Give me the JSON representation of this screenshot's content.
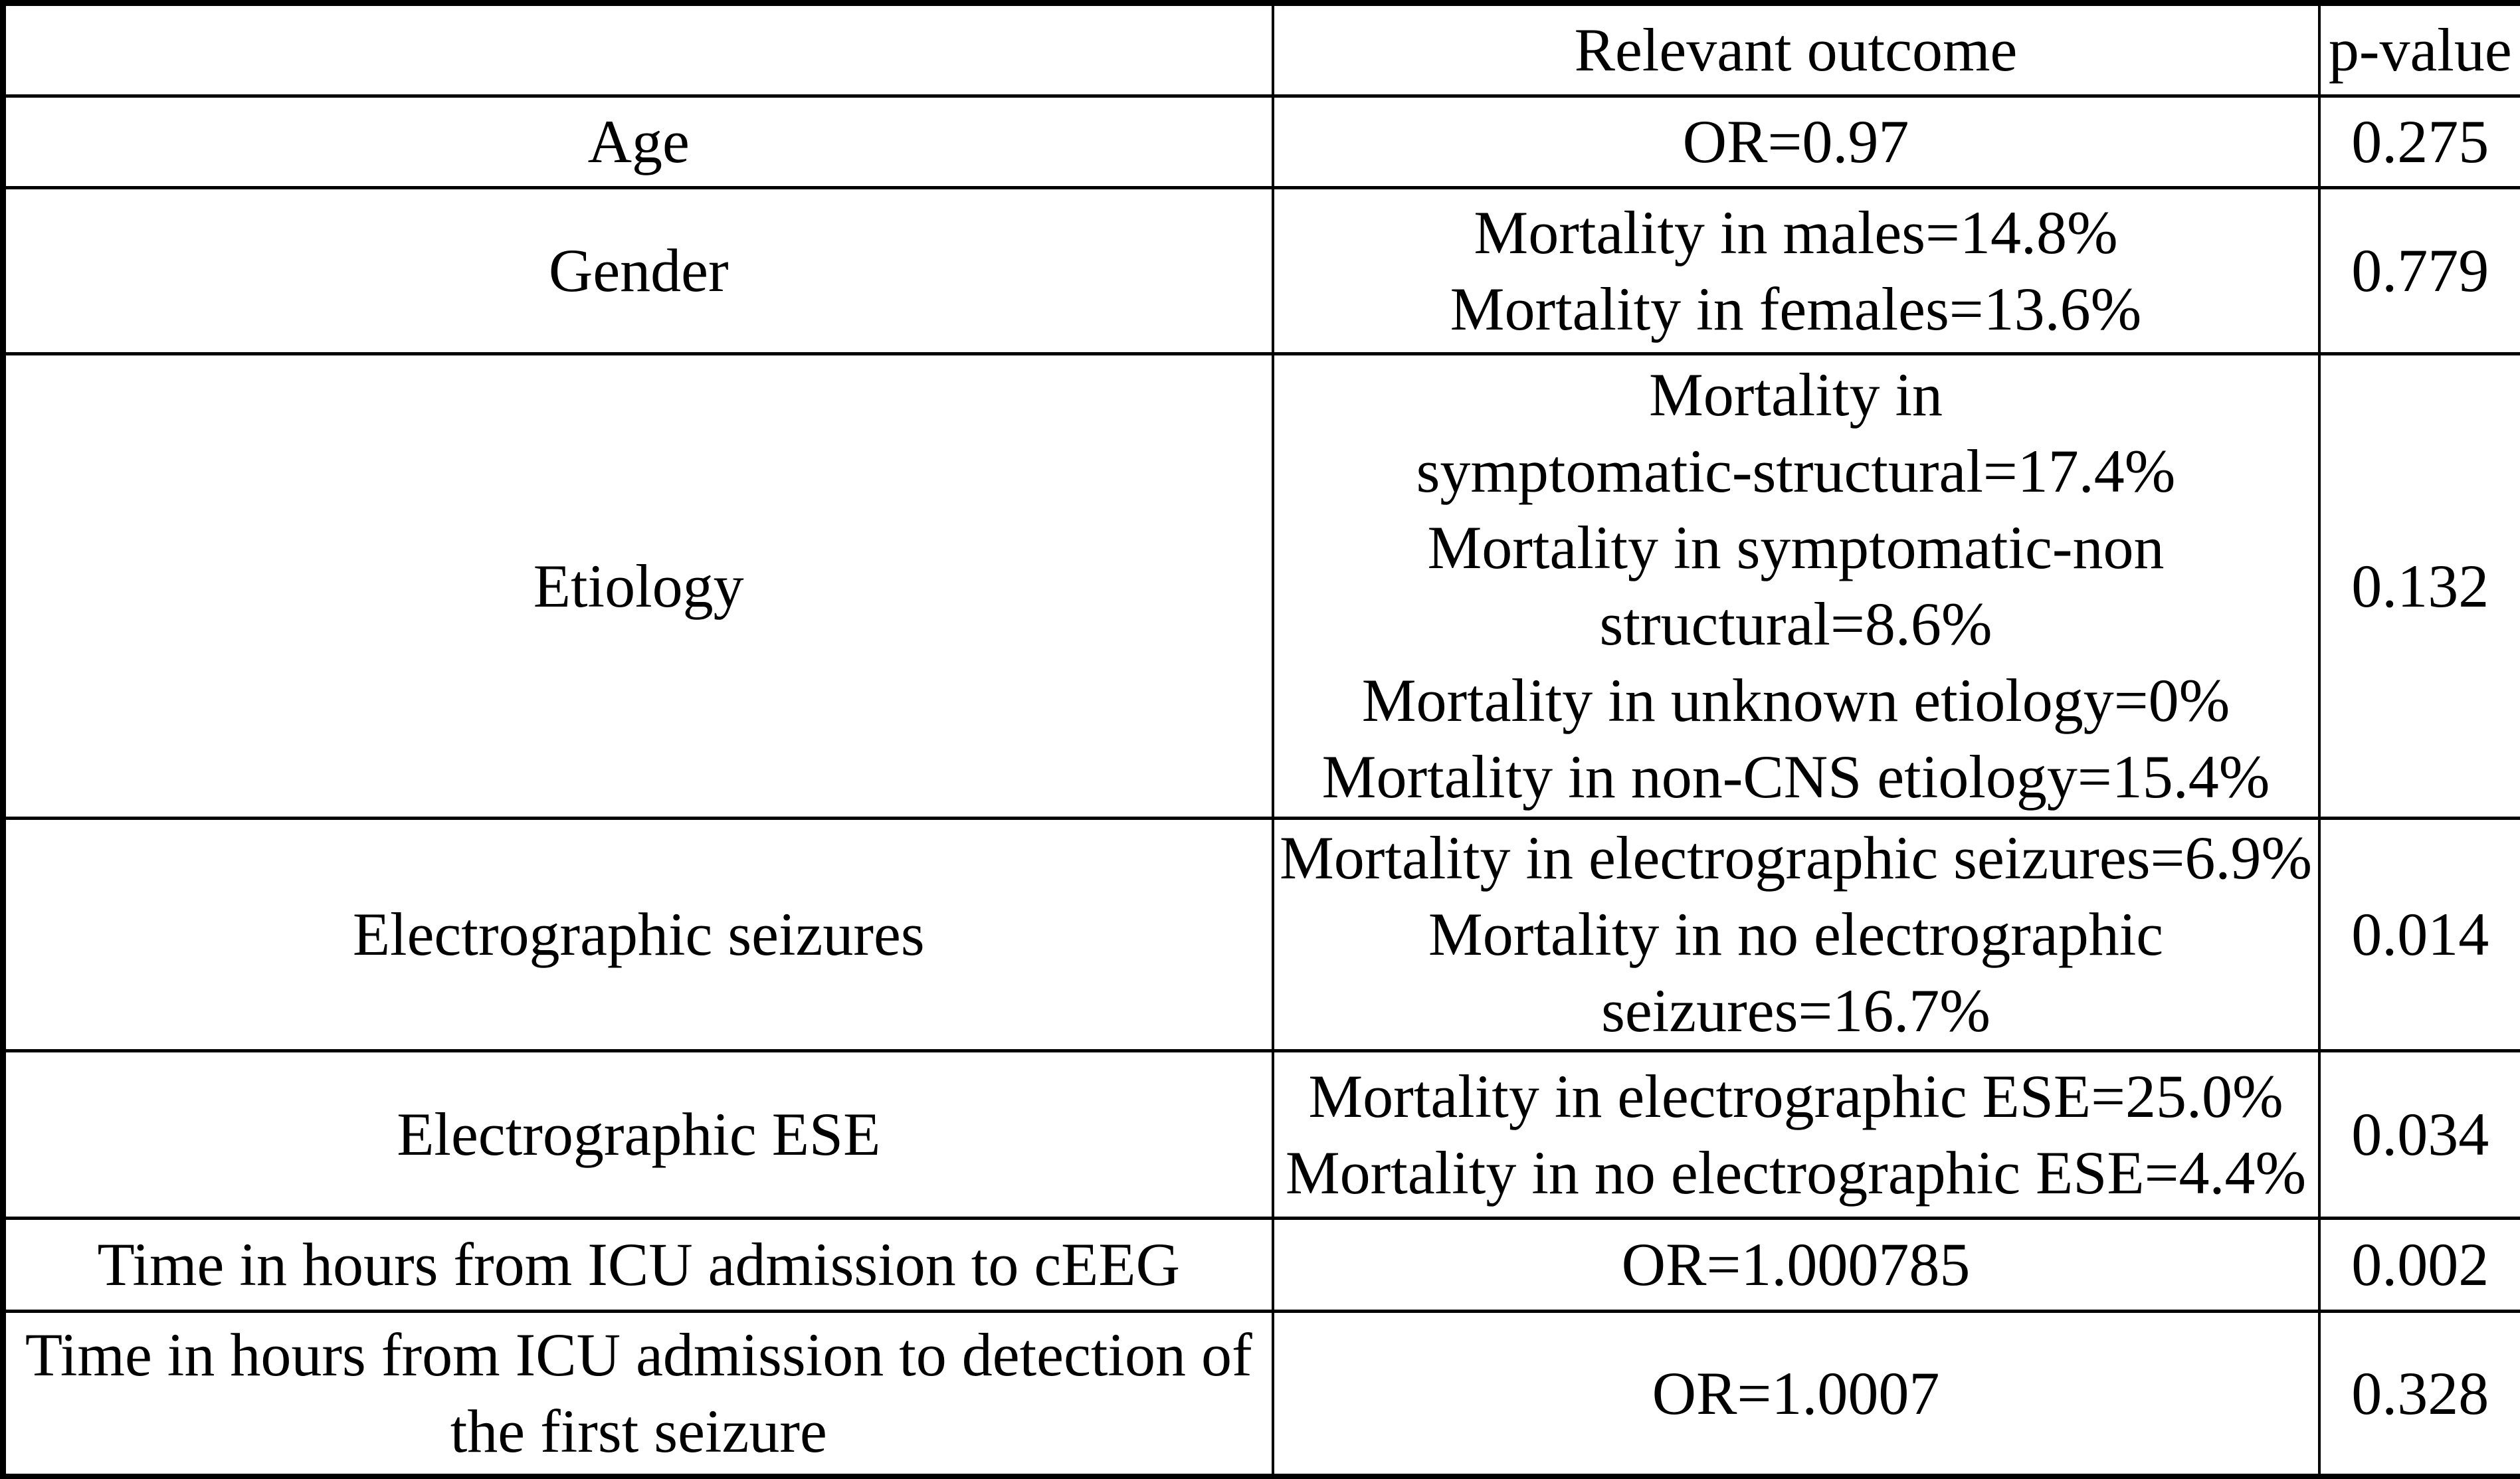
{
  "table": {
    "columns": [
      "",
      "Relevant outcome",
      "p-value"
    ],
    "rows": [
      {
        "label": "Age",
        "outcome": "OR=0.97",
        "p_value": "0.275"
      },
      {
        "label": "Gender",
        "outcome": "Mortality in males=14.8%\nMortality in females=13.6%",
        "p_value": "0.779"
      },
      {
        "label": "Etiology",
        "outcome": "Mortality in\nsymptomatic-structural=17.4%\nMortality in symptomatic-non\nstructural=8.6%\nMortality in unknown etiology=0%\nMortality in non-CNS etiology=15.4%",
        "p_value": "0.132"
      },
      {
        "label": "Electrographic seizures",
        "outcome": "Mortality in electrographic seizures=6.9%\nMortality in no electrographic\nseizures=16.7%",
        "p_value": "0.014"
      },
      {
        "label": "Electrographic ESE",
        "outcome": "Mortality in electrographic ESE=25.0%\nMortality in no electrographic ESE=4.4%",
        "p_value": "0.034"
      },
      {
        "label": "Time in hours from ICU admission to cEEG",
        "outcome": "OR=1.000785",
        "p_value": "0.002"
      },
      {
        "label": "Time in hours from ICU admission to detection of\nthe first seizure",
        "outcome": "OR=1.0007",
        "p_value": "0.328"
      }
    ]
  },
  "colors": {
    "background": "#ffffff",
    "text": "#000000",
    "border": "#000000"
  }
}
